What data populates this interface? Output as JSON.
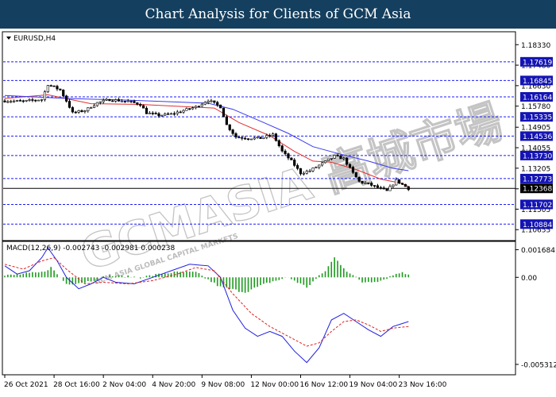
{
  "banner": {
    "title": "Chart Analysis for Clients of GCM Asia"
  },
  "watermark": {
    "text": "GCMASIA 高城市場",
    "sub": "GCM ASIA GLOBAL CAPITAL MARKETS"
  },
  "chart_data": {
    "type": "candlestick",
    "symbol": "EURUSD,H4",
    "ylim": [
      1.103,
      1.188
    ],
    "price_ticks": [
      "1.18330",
      "1.17480",
      "1.16630",
      "1.15780",
      "1.14905",
      "1.14055",
      "1.13205",
      "1.12350",
      "1.11505",
      "1.10655"
    ],
    "levels": [
      {
        "label": "1.17619",
        "value": 1.17619,
        "color": "#1a1aff",
        "style": "dash"
      },
      {
        "label": "1.16845",
        "value": 1.16845,
        "color": "#1a1aff",
        "style": "dash"
      },
      {
        "label": "1.16164",
        "value": 1.16164,
        "color": "#1a1aff",
        "style": "dash"
      },
      {
        "label": "1.15335",
        "value": 1.15335,
        "color": "#1a1aff",
        "style": "dash"
      },
      {
        "label": "1.14536",
        "value": 1.14536,
        "color": "#1a1aff",
        "style": "dash"
      },
      {
        "label": "1.13730",
        "value": 1.1373,
        "color": "#1a1aff",
        "style": "dash"
      },
      {
        "label": "1.12773",
        "value": 1.12773,
        "color": "#1a1aff",
        "style": "dash"
      },
      {
        "label": "1.12368",
        "value": 1.12368,
        "color": "#000000",
        "style": "solid"
      },
      {
        "label": "1.11702",
        "value": 1.11702,
        "color": "#1a1aff",
        "style": "dash"
      },
      {
        "label": "1.10884",
        "value": 1.10884,
        "color": "#1a1aff",
        "style": "dash"
      }
    ],
    "x_labels": [
      "26 Oct 2021",
      "28 Oct 16:00",
      "2 Nov 04:00",
      "4 Nov 20:00",
      "9 Nov 08:00",
      "12 Nov 00:00",
      "16 Nov 12:00",
      "19 Nov 04:00",
      "23 Nov 16:00"
    ],
    "x_label_bars": [
      0,
      16,
      32,
      48,
      64,
      80,
      96,
      112,
      128
    ],
    "close_path": [
      [
        0,
        1.16
      ],
      [
        6,
        1.1598
      ],
      [
        12,
        1.1606
      ],
      [
        14,
        1.1668
      ],
      [
        18,
        1.1645
      ],
      [
        20,
        1.16
      ],
      [
        22,
        1.155
      ],
      [
        26,
        1.156
      ],
      [
        30,
        1.1592
      ],
      [
        34,
        1.1605
      ],
      [
        40,
        1.1598
      ],
      [
        44,
        1.1585
      ],
      [
        46,
        1.155
      ],
      [
        50,
        1.154
      ],
      [
        54,
        1.1545
      ],
      [
        58,
        1.156
      ],
      [
        62,
        1.1575
      ],
      [
        66,
        1.1603
      ],
      [
        70,
        1.1575
      ],
      [
        72,
        1.15
      ],
      [
        75,
        1.145
      ],
      [
        79,
        1.1445
      ],
      [
        83,
        1.1445
      ],
      [
        87,
        1.146
      ],
      [
        90,
        1.139
      ],
      [
        93,
        1.135
      ],
      [
        96,
        1.13
      ],
      [
        99,
        1.131
      ],
      [
        103,
        1.134
      ],
      [
        107,
        1.137
      ],
      [
        110,
        1.136
      ],
      [
        113,
        1.13
      ],
      [
        115,
        1.1265
      ],
      [
        118,
        1.1255
      ],
      [
        121,
        1.124
      ],
      [
        124,
        1.1225
      ],
      [
        127,
        1.127
      ],
      [
        131,
        1.1236
      ]
    ],
    "moving_averages": [
      {
        "color": "#e03030",
        "points": [
          [
            0,
            1.161
          ],
          [
            14,
            1.1625
          ],
          [
            28,
            1.1588
          ],
          [
            44,
            1.1585
          ],
          [
            60,
            1.1575
          ],
          [
            68,
            1.157
          ],
          [
            76,
            1.151
          ],
          [
            86,
            1.1455
          ],
          [
            94,
            1.139
          ],
          [
            100,
            1.135
          ],
          [
            106,
            1.1345
          ],
          [
            114,
            1.1315
          ],
          [
            122,
            1.1275
          ],
          [
            128,
            1.126
          ],
          [
            131,
            1.1245
          ]
        ]
      },
      {
        "color": "#3a3af0",
        "points": [
          [
            0,
            1.1622
          ],
          [
            20,
            1.161
          ],
          [
            40,
            1.1603
          ],
          [
            56,
            1.1595
          ],
          [
            66,
            1.159
          ],
          [
            74,
            1.1565
          ],
          [
            84,
            1.151
          ],
          [
            92,
            1.1465
          ],
          [
            100,
            1.141
          ],
          [
            110,
            1.1375
          ],
          [
            118,
            1.135
          ],
          [
            126,
            1.132
          ],
          [
            131,
            1.131
          ]
        ]
      }
    ],
    "macd": {
      "label": "MACD(12,26,9) -0.002743 -0.002981 0.000238",
      "ylim": [
        -0.0058,
        0.002
      ],
      "ticks": [
        "0.001684",
        "0.00",
        "-0.005312"
      ],
      "main": [
        [
          0,
          0.0007
        ],
        [
          4,
          0.0002
        ],
        [
          8,
          0.0004
        ],
        [
          12,
          0.0012
        ],
        [
          14,
          0.0018
        ],
        [
          17,
          0.001
        ],
        [
          20,
          0.0
        ],
        [
          24,
          -0.0007
        ],
        [
          28,
          -0.0004
        ],
        [
          32,
          0.0
        ],
        [
          36,
          -0.0003
        ],
        [
          42,
          -0.0004
        ],
        [
          48,
          0.0
        ],
        [
          54,
          0.0004
        ],
        [
          60,
          0.0008
        ],
        [
          66,
          0.0007
        ],
        [
          70,
          0.0
        ],
        [
          74,
          -0.002
        ],
        [
          78,
          -0.0031
        ],
        [
          82,
          -0.0036
        ],
        [
          86,
          -0.0033
        ],
        [
          90,
          -0.0036
        ],
        [
          94,
          -0.0045
        ],
        [
          98,
          -0.0052
        ],
        [
          102,
          -0.0043
        ],
        [
          106,
          -0.0026
        ],
        [
          110,
          -0.0022
        ],
        [
          114,
          -0.0027
        ],
        [
          118,
          -0.0032
        ],
        [
          122,
          -0.0036
        ],
        [
          126,
          -0.003
        ],
        [
          131,
          -0.0027
        ]
      ],
      "signal": [
        [
          0,
          0.0008
        ],
        [
          6,
          0.0005
        ],
        [
          12,
          0.001
        ],
        [
          16,
          0.0012
        ],
        [
          20,
          0.0005
        ],
        [
          26,
          -0.0004
        ],
        [
          32,
          -0.0003
        ],
        [
          40,
          -0.0004
        ],
        [
          48,
          -0.0002
        ],
        [
          56,
          0.0002
        ],
        [
          62,
          0.0006
        ],
        [
          68,
          0.0004
        ],
        [
          74,
          -0.001
        ],
        [
          80,
          -0.0022
        ],
        [
          86,
          -0.003
        ],
        [
          92,
          -0.0036
        ],
        [
          98,
          -0.0042
        ],
        [
          102,
          -0.004
        ],
        [
          106,
          -0.0033
        ],
        [
          110,
          -0.0027
        ],
        [
          114,
          -0.0026
        ],
        [
          118,
          -0.0029
        ],
        [
          122,
          -0.0033
        ],
        [
          126,
          -0.0031
        ],
        [
          131,
          -0.003
        ]
      ],
      "hist": [
        [
          0,
          0.0001
        ],
        [
          12,
          0.0003
        ],
        [
          15,
          0.0006
        ],
        [
          20,
          -0.0004
        ],
        [
          26,
          -0.0003
        ],
        [
          34,
          0.0001
        ],
        [
          44,
          0.0
        ],
        [
          54,
          0.0003
        ],
        [
          62,
          0.0003
        ],
        [
          70,
          -0.0006
        ],
        [
          78,
          -0.0009
        ],
        [
          86,
          -0.0003
        ],
        [
          92,
          0.0
        ],
        [
          98,
          -0.0006
        ],
        [
          104,
          0.0004
        ],
        [
          107,
          0.0012
        ],
        [
          111,
          0.0004
        ],
        [
          116,
          -0.0003
        ],
        [
          122,
          -0.0002
        ],
        [
          128,
          0.0003
        ],
        [
          131,
          0.0002
        ]
      ]
    },
    "colors": {
      "line": "#000000",
      "ma_red": "#e03030",
      "ma_blue": "#3a3af0",
      "level_line": "#1a1aff",
      "label_bg": "#1414b4",
      "hist": "#1e9a1e"
    }
  }
}
